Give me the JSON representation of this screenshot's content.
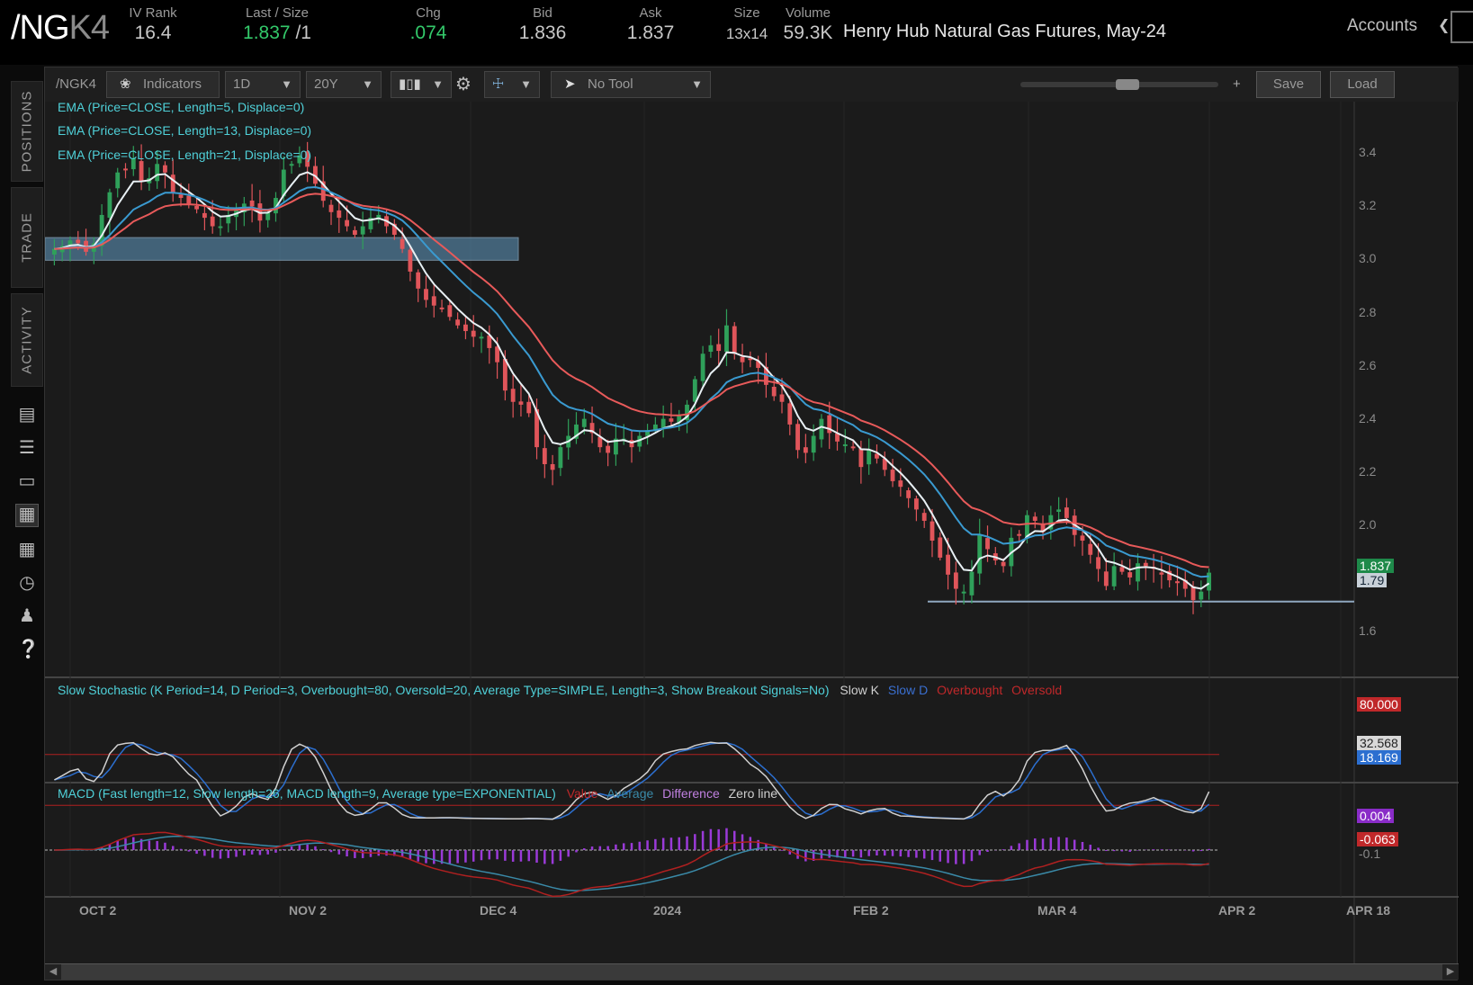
{
  "quote": {
    "symbol_main": "/NG",
    "symbol_suffix": "K4",
    "iv_rank_label": "IV Rank",
    "iv_rank": "16.4",
    "last_label": "Last / Size",
    "last": "1.837",
    "last_size": "/1",
    "chg_label": "Chg",
    "chg": ".074",
    "bid_label": "Bid",
    "bid": "1.836",
    "ask_label": "Ask",
    "ask": "1.837",
    "size_label": "Size",
    "size": "13x14",
    "volume_label": "Volume",
    "volume": "59.3K",
    "description": "Henry Hub Natural Gas Futures, May-24",
    "accounts_label": "Accounts"
  },
  "side_tabs": [
    "POSITIONS",
    "TRADE",
    "ACTIVITY"
  ],
  "side_icons": [
    "document-icon",
    "list-icon",
    "tv-icon",
    "chart-icon",
    "grid-icon",
    "gauge-icon",
    "people-icon",
    "help-icon"
  ],
  "toolbar": {
    "symbol": "/NGK4",
    "indicators": "Indicators",
    "timeframe": "1D",
    "range": "20Y",
    "no_tool": "No Tool",
    "zoom_minus": "-",
    "zoom_plus": "+",
    "save": "Save",
    "load": "Load"
  },
  "studies": {
    "ema5": "EMA (Price=CLOSE, Length=5, Displace=0)",
    "ema13": "EMA (Price=CLOSE, Length=13, Displace=0)",
    "ema21": "EMA (Price=CLOSE, Length=21, Displace=0)",
    "stoch": "Slow Stochastic (K Period=14, D Period=3, Overbought=80, Oversold=20, Average Type=SIMPLE, Length=3, Show Breakout Signals=No)",
    "stoch_legend": [
      "Slow K",
      "Slow D",
      "Overbought",
      "Oversold"
    ],
    "macd": "MACD (Fast length=12, Slow length=26, MACD length=9, Average type=EXPONENTIAL)",
    "macd_legend": [
      "Value",
      "Average",
      "Difference",
      "Zero line"
    ]
  },
  "colors": {
    "up": "#2fa05a",
    "down": "#e0555a",
    "ema5": "#e8f0f4",
    "ema13": "#3a9ad0",
    "ema21": "#e85a5a",
    "support": "#8fa8c0",
    "zone": "#4f7a98"
  },
  "price_axis": {
    "ticks": [
      "3.4",
      "3.2",
      "3.0",
      "2.8",
      "2.6",
      "2.4",
      "2.2",
      "2.0",
      "1.6"
    ],
    "last_tag": "1.837",
    "ema_tag": "1.79"
  },
  "stoch_axis": {
    "overbought_tag": "80.000",
    "k_tag": "32.568",
    "d_tag": "18.169"
  },
  "macd_axis": {
    "diff_tag": "0.004",
    "value_tag": "-0.063",
    "tick": "-0.1"
  },
  "date_axis": [
    "OCT 2",
    "NOV 2",
    "DEC 4",
    "2024",
    "FEB 2",
    "MAR 4",
    "APR 2",
    "APR 18"
  ],
  "chart_data": {
    "type": "candlestick",
    "title": "/NGK4",
    "ylim": [
      1.48,
      3.5
    ],
    "support_level": 1.735,
    "resistance_zone": [
      2.94,
      3.02
    ],
    "closes": [
      2.98,
      2.99,
      3.01,
      3.0,
      2.97,
      3.0,
      3.1,
      3.18,
      3.25,
      3.26,
      3.3,
      3.22,
      3.23,
      3.28,
      3.25,
      3.18,
      3.16,
      3.14,
      3.12,
      3.09,
      3.06,
      3.06,
      3.1,
      3.12,
      3.14,
      3.13,
      3.08,
      3.11,
      3.16,
      3.26,
      3.28,
      3.31,
      3.27,
      3.21,
      3.15,
      3.11,
      3.09,
      3.06,
      3.03,
      3.06,
      3.09,
      3.1,
      3.06,
      3.03,
      2.98,
      2.9,
      2.84,
      2.8,
      2.78,
      2.77,
      2.74,
      2.71,
      2.69,
      2.67,
      2.67,
      2.63,
      2.58,
      2.48,
      2.44,
      2.43,
      2.4,
      2.28,
      2.22,
      2.2,
      2.28,
      2.32,
      2.36,
      2.38,
      2.33,
      2.28,
      2.26,
      2.31,
      2.31,
      2.28,
      2.32,
      2.34,
      2.36,
      2.38,
      2.37,
      2.39,
      2.43,
      2.52,
      2.61,
      2.64,
      2.62,
      2.71,
      2.61,
      2.58,
      2.59,
      2.56,
      2.5,
      2.46,
      2.44,
      2.36,
      2.27,
      2.26,
      2.32,
      2.38,
      2.33,
      2.3,
      2.29,
      2.28,
      2.21,
      2.27,
      2.24,
      2.2,
      2.16,
      2.14,
      2.1,
      2.06,
      2.02,
      1.95,
      1.89,
      1.83,
      1.78,
      1.77,
      1.84,
      1.97,
      1.92,
      1.88,
      1.86,
      1.96,
      1.97,
      2.04,
      2.02,
      1.98,
      2.04,
      2.06,
      2.03,
      1.97,
      1.95,
      1.9,
      1.85,
      1.79,
      1.86,
      1.84,
      1.82,
      1.87,
      1.86,
      1.85,
      1.83,
      1.81,
      1.8,
      1.78,
      1.74,
      1.77,
      1.837
    ],
    "series": [
      {
        "name": "Slow K"
      },
      {
        "name": "Slow D"
      },
      {
        "name": "Value"
      },
      {
        "name": "Average"
      }
    ]
  }
}
